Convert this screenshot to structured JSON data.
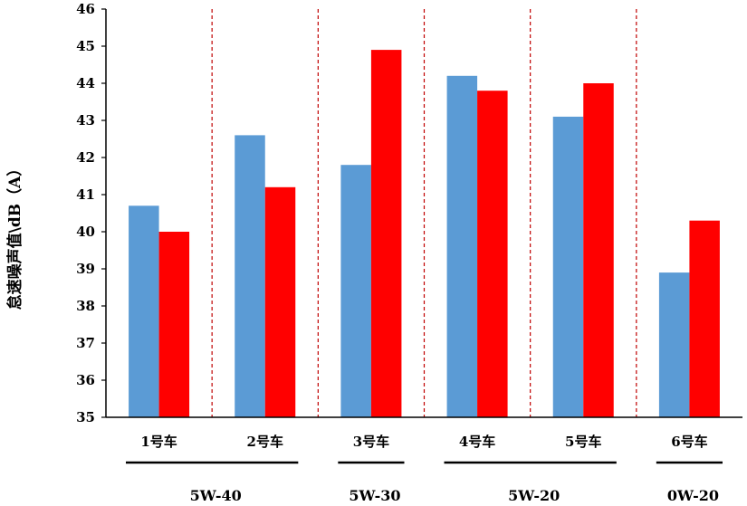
{
  "chart_data": {
    "type": "bar",
    "title": "",
    "xlabel": "",
    "ylabel": "怠速噪声值\\dB（A）",
    "ylim": [
      35,
      46
    ],
    "yticks": [
      35,
      36,
      37,
      38,
      39,
      40,
      41,
      42,
      43,
      44,
      45,
      46
    ],
    "grid": false,
    "legend": "none",
    "categories": [
      "1号车",
      "2号车",
      "3号车",
      "4号车",
      "5号车",
      "6号车"
    ],
    "series": [
      {
        "color": "#5b9bd5",
        "values": [
          40.7,
          42.6,
          41.8,
          44.2,
          43.1,
          38.9
        ]
      },
      {
        "color": "#ff0000",
        "values": [
          40.0,
          41.2,
          44.9,
          43.8,
          44.0,
          40.3
        ]
      }
    ],
    "separator_color": "#c00000",
    "groups": [
      {
        "label": "5W-40",
        "span": [
          0,
          1
        ]
      },
      {
        "label": "5W-30",
        "span": [
          2,
          2
        ]
      },
      {
        "label": "5W-20",
        "span": [
          3,
          4
        ]
      },
      {
        "label": "0W-20",
        "span": [
          5,
          5
        ]
      }
    ]
  }
}
